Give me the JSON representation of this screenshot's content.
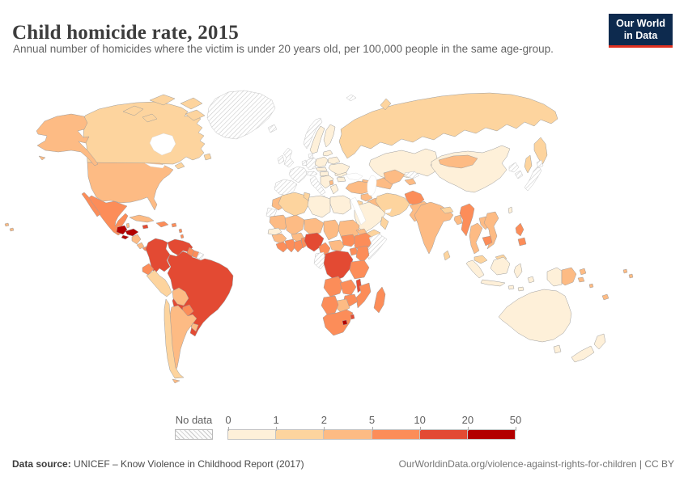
{
  "header": {
    "title": "Child homicide rate, 2015",
    "subtitle": "Annual number of homicides where the victim is under 20 years old, per 100,000 people in the same age-group.",
    "logo": {
      "line1": "Our World",
      "line2": "in Data",
      "bg_color": "#0d2a4e",
      "accent_color": "#e0301f"
    }
  },
  "legend": {
    "no_data_label": "No data",
    "tick_labels": [
      "0",
      "1",
      "2",
      "5",
      "10",
      "20",
      "50"
    ],
    "bins": [
      "0-1",
      "1-2",
      "2-5",
      "5-10",
      "10-20",
      "20-50"
    ],
    "colors": [
      "#fef0d9",
      "#fdd49e",
      "#fdbb84",
      "#fc8d59",
      "#e34a33",
      "#b30000"
    ],
    "no_data_pattern": "diagonal-hatch"
  },
  "footer": {
    "source_label": "Data source:",
    "source_text": " UNICEF – Know Violence in Childhood Report (2017)",
    "credit_text": "OurWorldinData.org/violence-against-rights-for-children | CC BY"
  },
  "chart_data": {
    "type": "heatmap",
    "subtype": "choropleth-world-map",
    "title": "Child homicide rate, 2015",
    "unit": "homicides per 100,000 people under 20 years old",
    "legend_position": "bottom",
    "legend_bins": [
      {
        "label": "No data",
        "color": "hatch"
      },
      {
        "label": "0-1",
        "color": "#fef0d9"
      },
      {
        "label": "1-2",
        "color": "#fdd49e"
      },
      {
        "label": "2-5",
        "color": "#fdbb84"
      },
      {
        "label": "5-10",
        "color": "#fc8d59"
      },
      {
        "label": "10-20",
        "color": "#e34a33"
      },
      {
        "label": "20-50",
        "color": "#b30000"
      }
    ],
    "regions": [
      {
        "id": "canada",
        "name": "Canada",
        "bin": "1-2"
      },
      {
        "id": "usa",
        "name": "United States",
        "bin": "2-5"
      },
      {
        "id": "greenland",
        "name": "Greenland",
        "bin": "no-data"
      },
      {
        "id": "mexico",
        "name": "Mexico",
        "bin": "5-10"
      },
      {
        "id": "guatemala",
        "name": "Guatemala",
        "bin": "20-50"
      },
      {
        "id": "belize",
        "name": "Belize",
        "bin": "2-5"
      },
      {
        "id": "honduras",
        "name": "Honduras",
        "bin": "20-50"
      },
      {
        "id": "el-salvador",
        "name": "El Salvador",
        "bin": "20-50"
      },
      {
        "id": "nicaragua",
        "name": "Nicaragua",
        "bin": "2-5"
      },
      {
        "id": "costa-rica",
        "name": "Costa Rica",
        "bin": "2-5"
      },
      {
        "id": "panama",
        "name": "Panama",
        "bin": "5-10"
      },
      {
        "id": "cuba",
        "name": "Cuba",
        "bin": "2-5"
      },
      {
        "id": "jamaica",
        "name": "Jamaica",
        "bin": "10-20"
      },
      {
        "id": "haiti-dominican-republic",
        "name": "Haiti / Dominican Republic",
        "bin": "5-10"
      },
      {
        "id": "lesser-antilles",
        "name": "Lesser Antilles",
        "bin": "5-10"
      },
      {
        "id": "brazil",
        "name": "Brazil",
        "bin": "10-20"
      },
      {
        "id": "colombia",
        "name": "Colombia",
        "bin": "10-20"
      },
      {
        "id": "venezuela",
        "name": "Venezuela",
        "bin": "10-20"
      },
      {
        "id": "guyana",
        "name": "Guyana",
        "bin": "5-10"
      },
      {
        "id": "suriname",
        "name": "Suriname",
        "bin": "5-10"
      },
      {
        "id": "french-guiana",
        "name": "French Guiana",
        "bin": "no-data"
      },
      {
        "id": "ecuador",
        "name": "Ecuador",
        "bin": "5-10"
      },
      {
        "id": "peru",
        "name": "Peru",
        "bin": "1-2"
      },
      {
        "id": "bolivia",
        "name": "Bolivia",
        "bin": "2-5"
      },
      {
        "id": "paraguay",
        "name": "Paraguay",
        "bin": "5-10"
      },
      {
        "id": "argentina",
        "name": "Argentina",
        "bin": "2-5"
      },
      {
        "id": "chile",
        "name": "Chile",
        "bin": "1-2"
      },
      {
        "id": "uruguay",
        "name": "Uruguay",
        "bin": "2-5"
      },
      {
        "id": "russia",
        "name": "Russia",
        "bin": "1-2"
      },
      {
        "id": "iceland",
        "name": "Iceland",
        "bin": "no-data"
      },
      {
        "id": "norway",
        "name": "Norway",
        "bin": "no-data"
      },
      {
        "id": "sweden",
        "name": "Sweden",
        "bin": "0-1"
      },
      {
        "id": "finland",
        "name": "Finland",
        "bin": "0-1"
      },
      {
        "id": "denmark",
        "name": "Denmark",
        "bin": "no-data"
      },
      {
        "id": "united-kingdom",
        "name": "United Kingdom",
        "bin": "no-data"
      },
      {
        "id": "ireland",
        "name": "Ireland",
        "bin": "no-data"
      },
      {
        "id": "france",
        "name": "France",
        "bin": "no-data"
      },
      {
        "id": "iberia",
        "name": "Spain / Portugal",
        "bin": "no-data"
      },
      {
        "id": "germany",
        "name": "Germany",
        "bin": "no-data"
      },
      {
        "id": "benelux",
        "name": "Belgium / Netherlands",
        "bin": "no-data"
      },
      {
        "id": "switzerland-austria",
        "name": "Switzerland / Austria",
        "bin": "no-data"
      },
      {
        "id": "italy",
        "name": "Italy",
        "bin": "no-data"
      },
      {
        "id": "poland",
        "name": "Poland",
        "bin": "0-1"
      },
      {
        "id": "czech-slovakia",
        "name": "Czechia / Slovakia",
        "bin": "0-1"
      },
      {
        "id": "hungary",
        "name": "Hungary",
        "bin": "0-1"
      },
      {
        "id": "balkans",
        "name": "Balkans",
        "bin": "0-1"
      },
      {
        "id": "albania",
        "name": "Albania",
        "bin": "2-5"
      },
      {
        "id": "greece",
        "name": "Greece",
        "bin": "0-1"
      },
      {
        "id": "romania",
        "name": "Romania",
        "bin": "0-1"
      },
      {
        "id": "bulgaria",
        "name": "Bulgaria",
        "bin": "0-1"
      },
      {
        "id": "baltic-states",
        "name": "Baltic states",
        "bin": "0-1"
      },
      {
        "id": "belarus",
        "name": "Belarus",
        "bin": "0-1"
      },
      {
        "id": "ukraine",
        "name": "Ukraine",
        "bin": "0-1"
      },
      {
        "id": "svalbard",
        "name": "Svalbard",
        "bin": "no-data"
      },
      {
        "id": "kazakhstan",
        "name": "Kazakhstan",
        "bin": "0-1"
      },
      {
        "id": "caucasus",
        "name": "Caucasus",
        "bin": "2-5"
      },
      {
        "id": "turkey",
        "name": "Turkey",
        "bin": "2-5"
      },
      {
        "id": "syria",
        "name": "Syria",
        "bin": "2-5"
      },
      {
        "id": "levant",
        "name": "Jordan / Israel",
        "bin": "1-2"
      },
      {
        "id": "iraq",
        "name": "Iraq",
        "bin": "2-5"
      },
      {
        "id": "iran",
        "name": "Iran",
        "bin": "1-2"
      },
      {
        "id": "afghanistan",
        "name": "Afghanistan",
        "bin": "5-10"
      },
      {
        "id": "pakistan",
        "name": "Pakistan",
        "bin": "2-5"
      },
      {
        "id": "turkmenistan",
        "name": "Turkmenistan",
        "bin": "2-5"
      },
      {
        "id": "uzbekistan",
        "name": "Uzbekistan",
        "bin": "2-5"
      },
      {
        "id": "kyrgyzstan",
        "name": "Kyrgyzstan",
        "bin": "no-data"
      },
      {
        "id": "tajikistan",
        "name": "Tajikistan",
        "bin": "2-5"
      },
      {
        "id": "saudi-arabia",
        "name": "Saudi Arabia",
        "bin": "0-1"
      },
      {
        "id": "yemen",
        "name": "Yemen",
        "bin": "1-2"
      },
      {
        "id": "oman",
        "name": "Oman",
        "bin": "1-2"
      },
      {
        "id": "india",
        "name": "India",
        "bin": "2-5"
      },
      {
        "id": "nepal",
        "name": "Nepal",
        "bin": "1-2"
      },
      {
        "id": "bangladesh",
        "name": "Bangladesh",
        "bin": "2-5"
      },
      {
        "id": "sri-lanka",
        "name": "Sri Lanka",
        "bin": "1-2"
      },
      {
        "id": "china",
        "name": "China",
        "bin": "0-1"
      },
      {
        "id": "mongolia",
        "name": "Mongolia",
        "bin": "2-5"
      },
      {
        "id": "north-korea",
        "name": "North Korea",
        "bin": "no-data"
      },
      {
        "id": "south-korea",
        "name": "South Korea",
        "bin": "no-data"
      },
      {
        "id": "japan",
        "name": "Japan",
        "bin": "no-data"
      },
      {
        "id": "taiwan",
        "name": "Taiwan",
        "bin": "0-1"
      },
      {
        "id": "myanmar",
        "name": "Myanmar",
        "bin": "5-10"
      },
      {
        "id": "thailand",
        "name": "Thailand",
        "bin": "2-5"
      },
      {
        "id": "laos",
        "name": "Laos",
        "bin": "2-5"
      },
      {
        "id": "vietnam",
        "name": "Vietnam",
        "bin": "2-5"
      },
      {
        "id": "cambodia",
        "name": "Cambodia",
        "bin": "5-10"
      },
      {
        "id": "malaysia",
        "name": "Malaysia",
        "bin": "1-2"
      },
      {
        "id": "indonesia",
        "name": "Indonesia",
        "bin": "0-1"
      },
      {
        "id": "philippines",
        "name": "Philippines",
        "bin": "5-10"
      },
      {
        "id": "papua-new-guinea",
        "name": "Papua New Guinea",
        "bin": "2-5"
      },
      {
        "id": "pacific-islands",
        "name": "Pacific islands",
        "bin": "2-5"
      },
      {
        "id": "australia",
        "name": "Australia",
        "bin": "0-1"
      },
      {
        "id": "new-zealand",
        "name": "New Zealand",
        "bin": "0-1"
      },
      {
        "id": "morocco",
        "name": "Morocco",
        "bin": "2-5"
      },
      {
        "id": "western-sahara",
        "name": "Western Sahara",
        "bin": "no-data"
      },
      {
        "id": "algeria",
        "name": "Algeria",
        "bin": "1-2"
      },
      {
        "id": "tunisia",
        "name": "Tunisia",
        "bin": "1-2"
      },
      {
        "id": "libya",
        "name": "Libya",
        "bin": "0-1"
      },
      {
        "id": "egypt",
        "name": "Egypt",
        "bin": "0-1"
      },
      {
        "id": "mauritania",
        "name": "Mauritania",
        "bin": "2-5"
      },
      {
        "id": "senegal",
        "name": "Senegal",
        "bin": "0-1"
      },
      {
        "id": "mali",
        "name": "Mali",
        "bin": "2-5"
      },
      {
        "id": "niger",
        "name": "Niger",
        "bin": "2-5"
      },
      {
        "id": "chad",
        "name": "Chad",
        "bin": "2-5"
      },
      {
        "id": "sudan",
        "name": "Sudan",
        "bin": "2-5"
      },
      {
        "id": "eritrea",
        "name": "Eritrea",
        "bin": "2-5"
      },
      {
        "id": "guinea",
        "name": "Guinea",
        "bin": "2-5"
      },
      {
        "id": "sierra-leone-liberia",
        "name": "Sierra Leone / Liberia",
        "bin": "5-10"
      },
      {
        "id": "ivory-coast",
        "name": "Cote d'Ivoire",
        "bin": "5-10"
      },
      {
        "id": "burkina-faso",
        "name": "Burkina Faso",
        "bin": "2-5"
      },
      {
        "id": "ghana",
        "name": "Ghana",
        "bin": "5-10"
      },
      {
        "id": "togo-benin",
        "name": "Togo / Benin",
        "bin": "5-10"
      },
      {
        "id": "nigeria",
        "name": "Nigeria",
        "bin": "10-20"
      },
      {
        "id": "cameroon",
        "name": "Cameroon",
        "bin": "5-10"
      },
      {
        "id": "central-african-republic",
        "name": "Central African Republic",
        "bin": "2-5"
      },
      {
        "id": "south-sudan",
        "name": "South Sudan",
        "bin": "5-10"
      },
      {
        "id": "ethiopia",
        "name": "Ethiopia",
        "bin": "5-10"
      },
      {
        "id": "somalia",
        "name": "Somalia",
        "bin": "no-data"
      },
      {
        "id": "uganda",
        "name": "Uganda",
        "bin": "5-10"
      },
      {
        "id": "kenya",
        "name": "Kenya",
        "bin": "5-10"
      },
      {
        "id": "gabon-congo",
        "name": "Gabon / Congo",
        "bin": "no-data"
      },
      {
        "id": "drc",
        "name": "Democratic Republic of Congo",
        "bin": "10-20"
      },
      {
        "id": "tanzania",
        "name": "Tanzania",
        "bin": "5-10"
      },
      {
        "id": "angola",
        "name": "Angola",
        "bin": "5-10"
      },
      {
        "id": "zambia",
        "name": "Zambia",
        "bin": "5-10"
      },
      {
        "id": "malawi",
        "name": "Malawi",
        "bin": "10-20"
      },
      {
        "id": "mozambique",
        "name": "Mozambique",
        "bin": "5-10"
      },
      {
        "id": "zimbabwe",
        "name": "Zimbabwe",
        "bin": "5-10"
      },
      {
        "id": "botswana",
        "name": "Botswana",
        "bin": "2-5"
      },
      {
        "id": "namibia",
        "name": "Namibia",
        "bin": "5-10"
      },
      {
        "id": "south-africa",
        "name": "South Africa",
        "bin": "5-10"
      },
      {
        "id": "lesotho",
        "name": "Lesotho",
        "bin": "20-50"
      },
      {
        "id": "swaziland",
        "name": "Eswatini",
        "bin": "10-20"
      },
      {
        "id": "madagascar",
        "name": "Madagascar",
        "bin": "5-10"
      }
    ]
  }
}
